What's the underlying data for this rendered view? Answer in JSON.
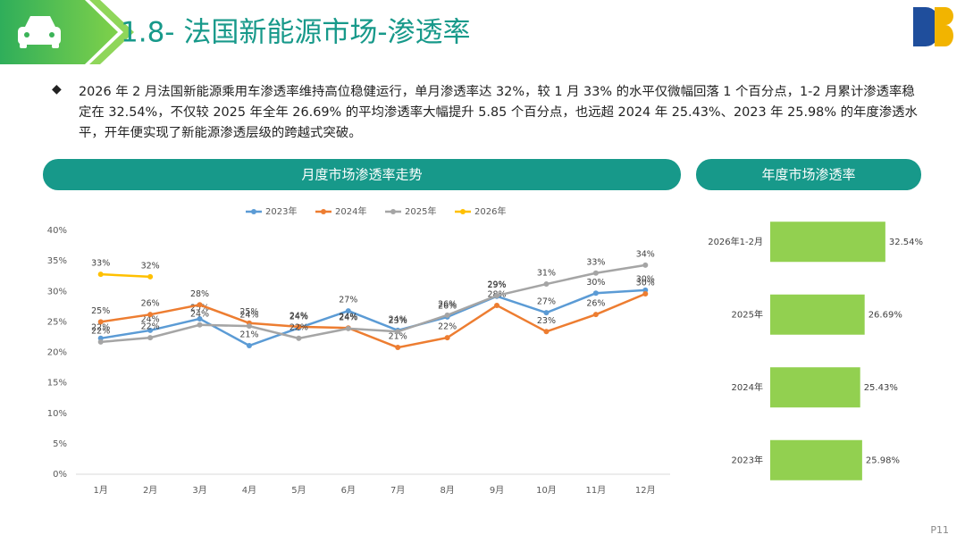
{
  "header": {
    "title": "1.8- 法国新能源市场-渗透率",
    "page": "P11"
  },
  "summary": "2026 年 2 月法国新能源乘用车渗透率维持高位稳健运行，单月渗透率达 32%，较 1 月 33% 的水平仅微幅回落 1 个百分点，1-2 月累计渗透率稳定在 32.54%，不仅较 2025 年全年 26.69% 的平均渗透率大幅提升 5.85 个百分点，也远超 2024 年 25.43%、2023 年 25.98% 的年度渗透水平，开年便实现了新能源渗透层级的跨越式突破。",
  "chart_data": [
    {
      "type": "line",
      "title": "月度市场渗透率走势",
      "categories": [
        "1月",
        "2月",
        "3月",
        "4月",
        "5月",
        "6月",
        "7月",
        "8月",
        "9月",
        "10月",
        "11月",
        "12月"
      ],
      "series": [
        {
          "name": "2023年",
          "color": "#5b9bd5",
          "values": [
            22.3,
            23.6,
            25.5,
            21.1,
            24.0,
            26.8,
            23.6,
            25.8,
            29.2,
            26.5,
            29.7,
            30.2
          ],
          "value_labels": [
            "22%",
            "24%",
            "25%",
            "21%",
            "24%",
            "27%",
            "24%",
            "26%",
            "29%",
            "27%",
            "30%",
            "30%"
          ]
        },
        {
          "name": "2024年",
          "color": "#ed7d31",
          "values": [
            25.0,
            26.2,
            27.8,
            24.8,
            24.2,
            24.0,
            20.8,
            22.4,
            27.7,
            23.4,
            26.2,
            29.6
          ],
          "value_labels": [
            "25%",
            "26%",
            "28%",
            "25%",
            "24%",
            "24%",
            "21%",
            "22%",
            "28%",
            "23%",
            "26%",
            "30%"
          ]
        },
        {
          "name": "2025年",
          "color": "#a5a5a5",
          "values": [
            21.7,
            22.4,
            24.5,
            24.3,
            22.3,
            23.9,
            23.4,
            26.1,
            29.3,
            31.2,
            33.0,
            34.3
          ],
          "value_labels": [
            "22%",
            "22%",
            "24%",
            "24%",
            "22%",
            "24%",
            "23%",
            "26%",
            "29%",
            "31%",
            "33%",
            "34%"
          ]
        },
        {
          "name": "2026年",
          "color": "#ffc000",
          "values": [
            32.8,
            32.4,
            null,
            null,
            null,
            null,
            null,
            null,
            null,
            null,
            null,
            null
          ],
          "value_labels": [
            "33%",
            "32%",
            null,
            null,
            null,
            null,
            null,
            null,
            null,
            null,
            null,
            null
          ]
        }
      ],
      "ylim": [
        0,
        40
      ],
      "yticks": [
        {
          "value": 0,
          "label": "0%"
        },
        {
          "value": 5,
          "label": "5%"
        },
        {
          "value": 10,
          "label": "10%"
        },
        {
          "value": 15,
          "label": "15%"
        },
        {
          "value": 20,
          "label": "20%"
        },
        {
          "value": 25,
          "label": "25%"
        },
        {
          "value": 30,
          "label": "30%"
        },
        {
          "value": 35,
          "label": "35%"
        },
        {
          "value": 40,
          "label": "40%"
        }
      ],
      "legend": "top"
    },
    {
      "type": "hbar",
      "title": "年度市场渗透率",
      "categories": [
        "2026年1-2月",
        "2025年",
        "2024年",
        "2023年"
      ],
      "values": [
        32.54,
        26.69,
        25.43,
        25.98
      ],
      "value_labels": [
        "32.54%",
        "26.69%",
        "25.43%",
        "25.98%"
      ],
      "color": "#92d050"
    }
  ]
}
